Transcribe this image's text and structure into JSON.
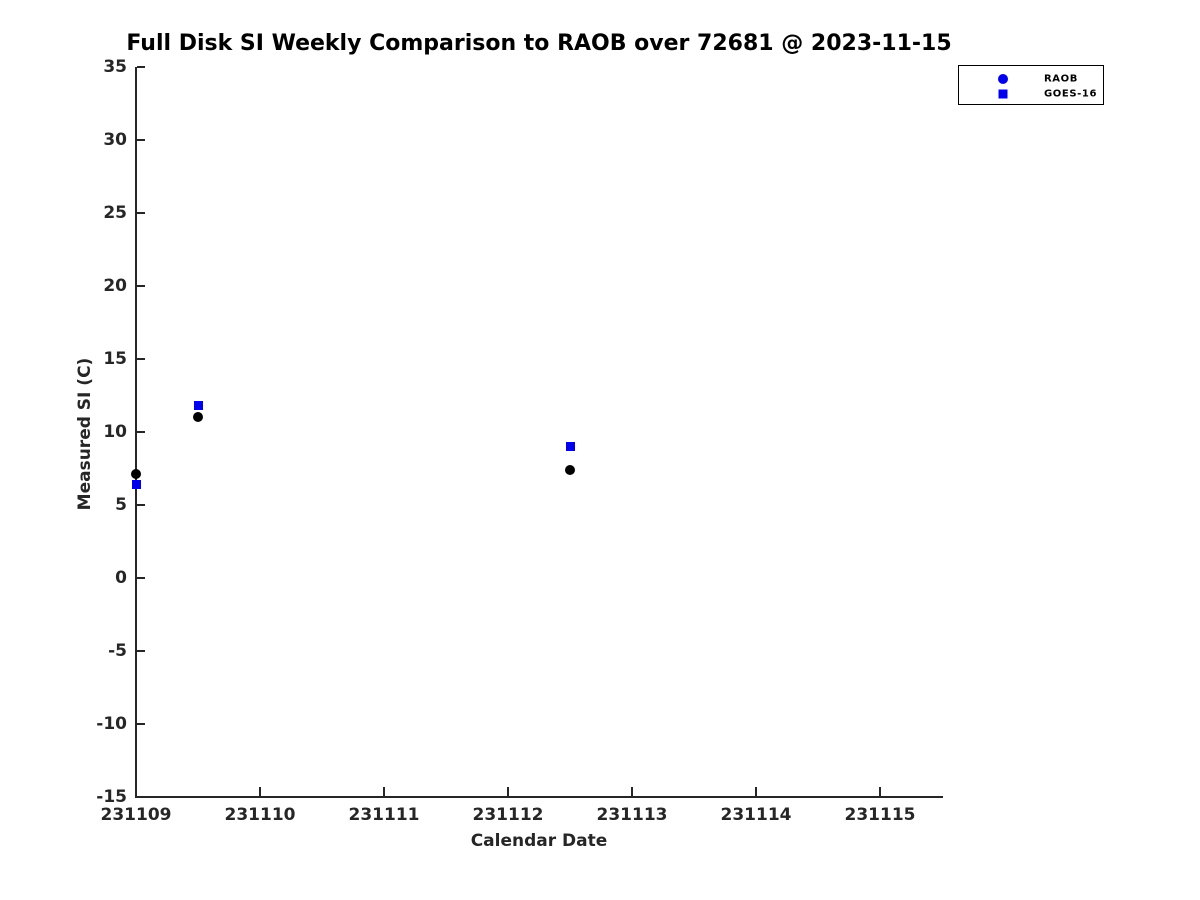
{
  "chart_data": {
    "type": "scatter",
    "title": "Full Disk SI Weekly Comparison to RAOB over 72681 @ 2023-11-15",
    "xlabel": "Calendar Date",
    "ylabel": "Measured SI (C)",
    "xlim": [
      231109,
      231115.5
    ],
    "ylim": [
      -15,
      35
    ],
    "xticks": [
      231109,
      231110,
      231111,
      231112,
      231113,
      231114,
      231115
    ],
    "yticks": [
      35,
      30,
      25,
      20,
      15,
      10,
      5,
      0,
      -5,
      -10,
      -15
    ],
    "grid": false,
    "legend_position": "top-right",
    "series": [
      {
        "name": "RAOB",
        "marker": "circle",
        "marker_color": "#000000",
        "legend_marker_color": "#0000ee",
        "points": [
          {
            "x": 231109.0,
            "y": 7.1
          },
          {
            "x": 231109.5,
            "y": 11.0
          },
          {
            "x": 231112.5,
            "y": 7.4
          }
        ]
      },
      {
        "name": "GOES-16",
        "marker": "square",
        "marker_color": "#0000ee",
        "legend_marker_color": "#0000ee",
        "points": [
          {
            "x": 231109.0,
            "y": 6.4
          },
          {
            "x": 231109.5,
            "y": 11.8
          },
          {
            "x": 231112.5,
            "y": 9.0
          }
        ]
      }
    ],
    "colors": {
      "series_blue": "#0000ee",
      "axis": "#262626",
      "title_text": "#000000"
    }
  }
}
